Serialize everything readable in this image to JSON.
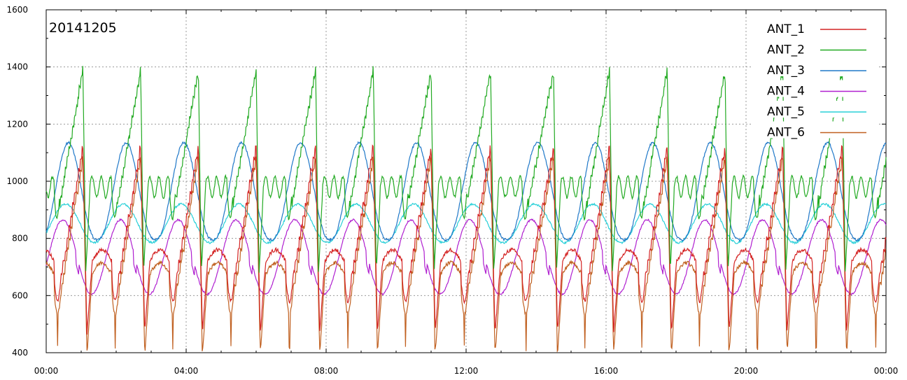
{
  "chart_data": {
    "type": "line",
    "title": "20141205",
    "xlabel": "",
    "ylabel": "",
    "x_ticks": [
      "00:00",
      "04:00",
      "08:00",
      "12:00",
      "16:00",
      "20:00",
      "00:00"
    ],
    "x_range_hours": [
      0,
      24
    ],
    "ylim": [
      400,
      1600
    ],
    "y_ticks": [
      400,
      600,
      800,
      1000,
      1200,
      1400,
      1600
    ],
    "grid": true,
    "legend_position": "top-right",
    "cycle_start_hours": [
      1.05,
      2.7,
      4.35,
      6.0,
      7.7,
      9.35,
      11.0,
      12.7,
      14.5,
      16.1,
      17.75,
      19.4,
      21.05,
      22.75
    ],
    "series": [
      {
        "name": "ANT_1",
        "color": "#d42424",
        "description": "sawtooth, peak about 1120 at each cycle start, trough about 460-480 shortly after, plateau 680-760",
        "peak": 1120,
        "trough": 470,
        "base": 720
      },
      {
        "name": "ANT_2",
        "color": "#22aa22",
        "description": "sawtooth rising to about 1380-1400 at each cycle start, dropping to about 680, ripple 900-1040",
        "peak": 1390,
        "trough": 680,
        "base": 960
      },
      {
        "name": "ANT_3",
        "color": "#1f78c8",
        "description": "smooth hump, maximum about 1120-1140 after each cycle start, minimum about 790-800",
        "peak": 1135,
        "trough": 795
      },
      {
        "name": "ANT_4",
        "color": "#b020d0",
        "description": "smooth hump, maximum about 860-870, minimum about 600",
        "peak": 865,
        "trough": 605
      },
      {
        "name": "ANT_5",
        "color": "#28d0d8",
        "description": "smooth hump, maximum about 910-930, minimum about 780-790",
        "peak": 920,
        "trough": 785
      },
      {
        "name": "ANT_6",
        "color": "#c06020",
        "description": "follows ANT_1 closely, peak about 1110, deep spikes down to about 410-420",
        "peak": 1110,
        "trough": 415,
        "base": 700
      }
    ]
  }
}
